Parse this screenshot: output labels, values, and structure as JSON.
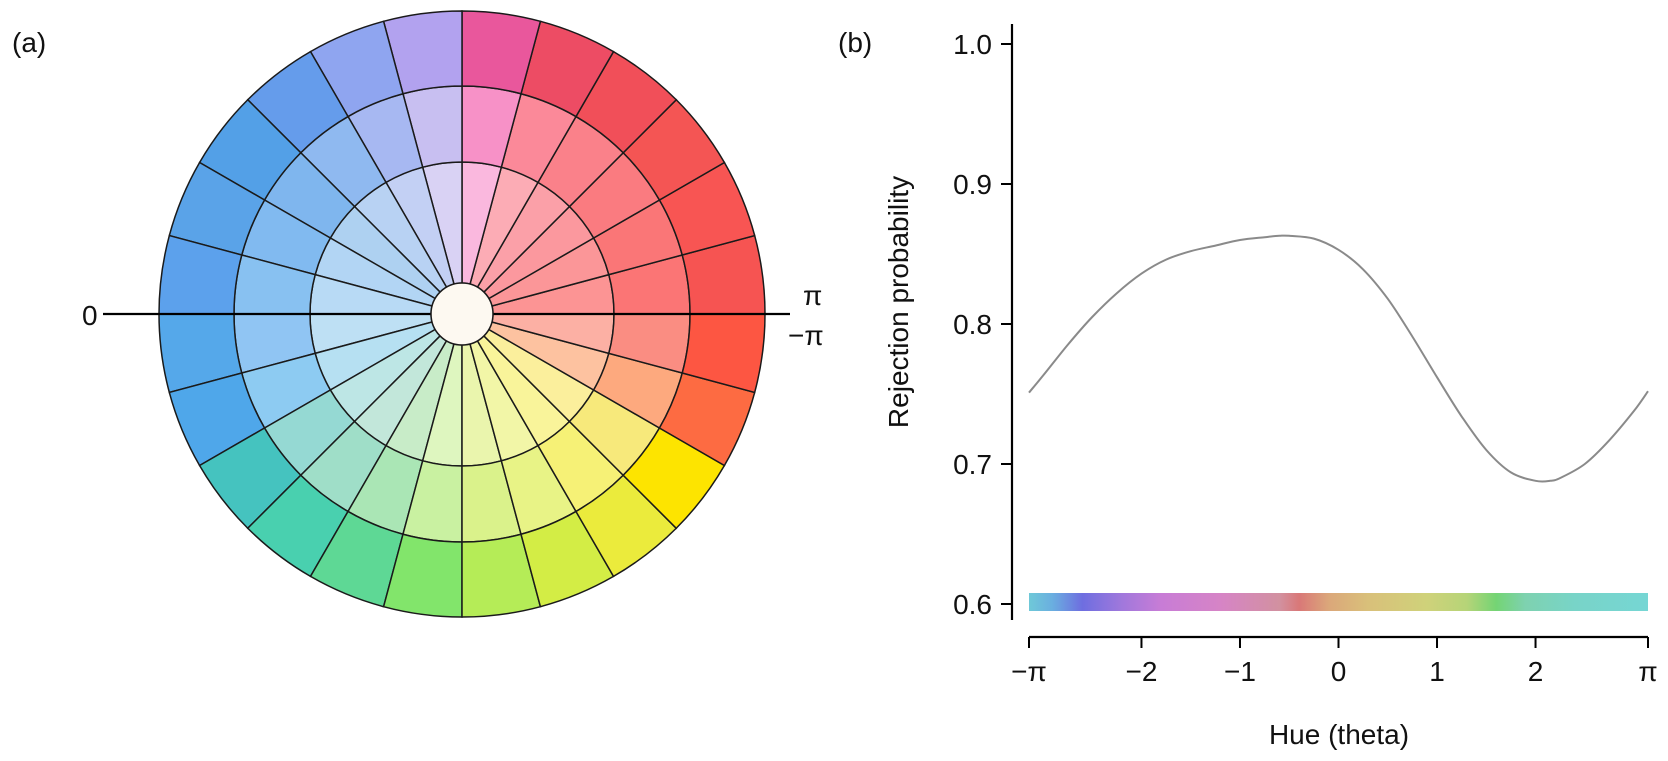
{
  "panel_a": {
    "label": "(a)",
    "left_label": "0",
    "right_label_top": "π",
    "right_label_bottom": "−π",
    "colors": {
      "outer": [
        "#f65452",
        "#f85553",
        "#f45554",
        "#f14f59",
        "#ed4c64",
        "#e9579c",
        "#b2a2ef",
        "#8fa5f0",
        "#659ceb",
        "#53a0e7",
        "#5aa3e8",
        "#5ca1ec",
        "#55a8ea",
        "#4fa7ea",
        "#45c3bf",
        "#49d0af",
        "#5ed895",
        "#82e56b",
        "#b5ec57",
        "#d3ed45",
        "#ebeb3c",
        "#fde400",
        "#fd6b42",
        "#fd5642"
      ],
      "middle": [
        "#fb7575",
        "#fa7677",
        "#fa7b80",
        "#fa818a",
        "#fb8999",
        "#f791c7",
        "#c8bff1",
        "#a7b8f2",
        "#8fb9f0",
        "#7fb6ee",
        "#81baf0",
        "#88c1f1",
        "#90c5f3",
        "#8dcbf2",
        "#95d9d3",
        "#9fdec8",
        "#aae6b5",
        "#c9f1a1",
        "#daf28b",
        "#e8f386",
        "#f6f176",
        "#f7e97b",
        "#fda97e",
        "#fa8d82"
      ],
      "inner": [
        "#fc9494",
        "#fb9698",
        "#fb989e",
        "#fba0a8",
        "#fcacb5",
        "#fab8de",
        "#d9d2f4",
        "#c3d0f4",
        "#b8d2f3",
        "#aed1f1",
        "#b2d5f4",
        "#b8daf5",
        "#bee0f4",
        "#b6e0f2",
        "#bde6e5",
        "#c2e7da",
        "#c8ecc8",
        "#def6bf",
        "#eaf5ad",
        "#f2f6a7",
        "#f9f49a",
        "#fbef9c",
        "#fdc2a0",
        "#fcb0a4"
      ]
    }
  },
  "panel_b": {
    "label": "(b)",
    "chart_data": {
      "type": "line",
      "xlabel": "Hue (theta)",
      "ylabel": "Rejection probability",
      "xlim": [
        -3.1416,
        3.1416
      ],
      "ylim": [
        0.6,
        1.0
      ],
      "x_ticks": [
        {
          "value": -3.1416,
          "label": "−π"
        },
        {
          "value": -2,
          "label": "−2"
        },
        {
          "value": -1,
          "label": "−1"
        },
        {
          "value": 0,
          "label": "0"
        },
        {
          "value": 1,
          "label": "1"
        },
        {
          "value": 2,
          "label": "2"
        },
        {
          "value": 3.1416,
          "label": "π"
        }
      ],
      "y_ticks": [
        {
          "value": 0.6,
          "label": "0.6"
        },
        {
          "value": 0.7,
          "label": "0.7"
        },
        {
          "value": 0.8,
          "label": "0.8"
        },
        {
          "value": 0.9,
          "label": "0.9"
        },
        {
          "value": 1.0,
          "label": "1.0"
        }
      ],
      "series": [
        {
          "color": "#8a8a8a",
          "x": [
            -3.1416,
            -3.0,
            -2.75,
            -2.5,
            -2.25,
            -2.0,
            -1.75,
            -1.5,
            -1.25,
            -1.0,
            -0.75,
            -0.6,
            -0.5,
            -0.25,
            0.0,
            0.25,
            0.5,
            0.75,
            1.0,
            1.25,
            1.5,
            1.75,
            2.0,
            2.15,
            2.25,
            2.5,
            2.75,
            3.0,
            3.1416
          ],
          "y": [
            0.751,
            0.763,
            0.785,
            0.805,
            0.822,
            0.836,
            0.846,
            0.852,
            0.856,
            0.86,
            0.862,
            0.863,
            0.863,
            0.861,
            0.853,
            0.839,
            0.818,
            0.791,
            0.762,
            0.734,
            0.71,
            0.694,
            0.688,
            0.688,
            0.69,
            0.7,
            0.717,
            0.738,
            0.752
          ]
        }
      ],
      "hue_bar": {
        "y": 0.6,
        "stops": [
          {
            "x": -3.1416,
            "color": "#6fc9d8"
          },
          {
            "x": -2.9,
            "color": "#6aaee0"
          },
          {
            "x": -2.6,
            "color": "#6e6ee0"
          },
          {
            "x": -2.2,
            "color": "#a078dc"
          },
          {
            "x": -1.8,
            "color": "#c87cd6"
          },
          {
            "x": -1.2,
            "color": "#d684c6"
          },
          {
            "x": -0.6,
            "color": "#d291a0"
          },
          {
            "x": -0.4,
            "color": "#d97878"
          },
          {
            "x": -0.1,
            "color": "#dba77a"
          },
          {
            "x": 0.3,
            "color": "#d9c07a"
          },
          {
            "x": 0.9,
            "color": "#cfd27a"
          },
          {
            "x": 1.3,
            "color": "#b6d478"
          },
          {
            "x": 1.6,
            "color": "#74d474"
          },
          {
            "x": 1.9,
            "color": "#7ed2b0"
          },
          {
            "x": 2.4,
            "color": "#78d4c8"
          },
          {
            "x": 3.1416,
            "color": "#76d6d4"
          }
        ]
      }
    }
  }
}
